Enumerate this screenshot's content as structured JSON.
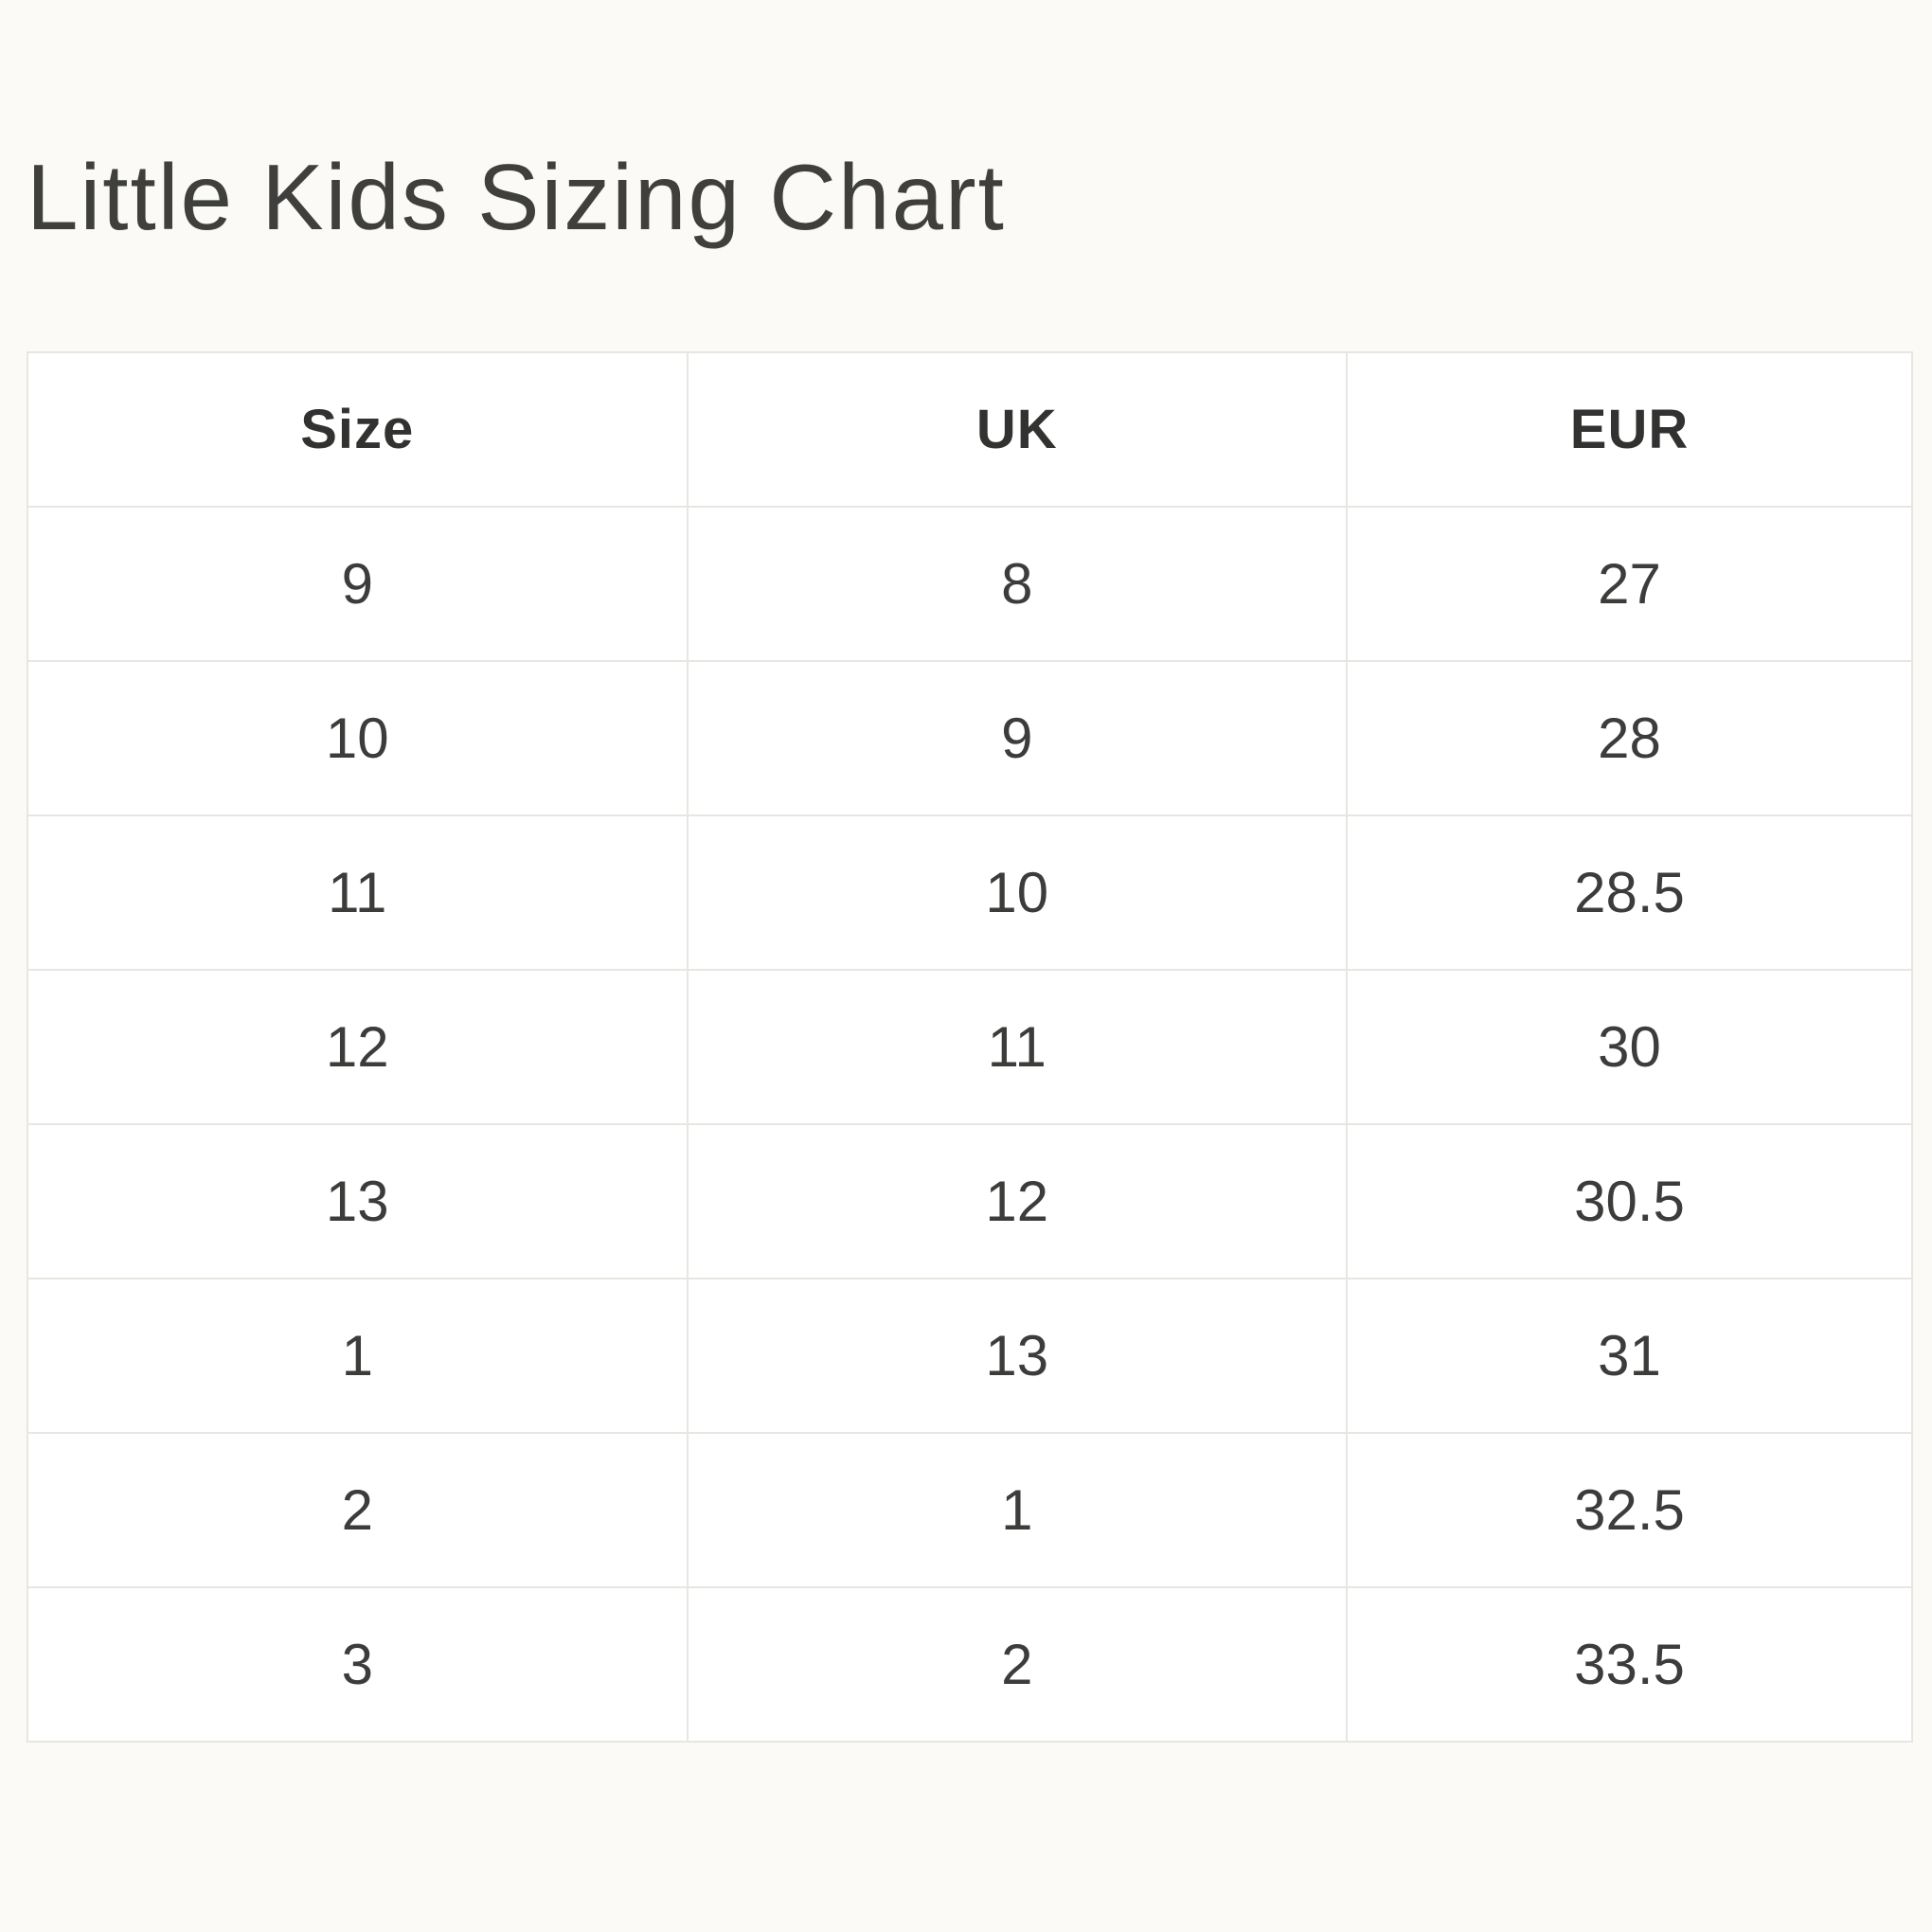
{
  "page": {
    "title": "Little Kids Sizing Chart"
  },
  "chart_data": {
    "type": "table",
    "title": "Little Kids Sizing Chart",
    "columns": [
      "Size",
      "UK",
      "EUR"
    ],
    "rows": [
      [
        "9",
        "8",
        "27"
      ],
      [
        "10",
        "9",
        "28"
      ],
      [
        "11",
        "10",
        "28.5"
      ],
      [
        "12",
        "11",
        "30"
      ],
      [
        "13",
        "12",
        "30.5"
      ],
      [
        "1",
        "13",
        "31"
      ],
      [
        "2",
        "1",
        "32.5"
      ],
      [
        "3",
        "2",
        "33.5"
      ]
    ],
    "layout": {
      "header_bold": true,
      "cell_alignment": "center",
      "grid": "full-borders"
    }
  },
  "colors": {
    "page_background": "#fbfaf7",
    "cell_background": "#ffffff",
    "border": "#e8e6e0",
    "title_text": "#3f3f3e",
    "header_text": "#323231",
    "cell_text": "#3c3c3b"
  }
}
